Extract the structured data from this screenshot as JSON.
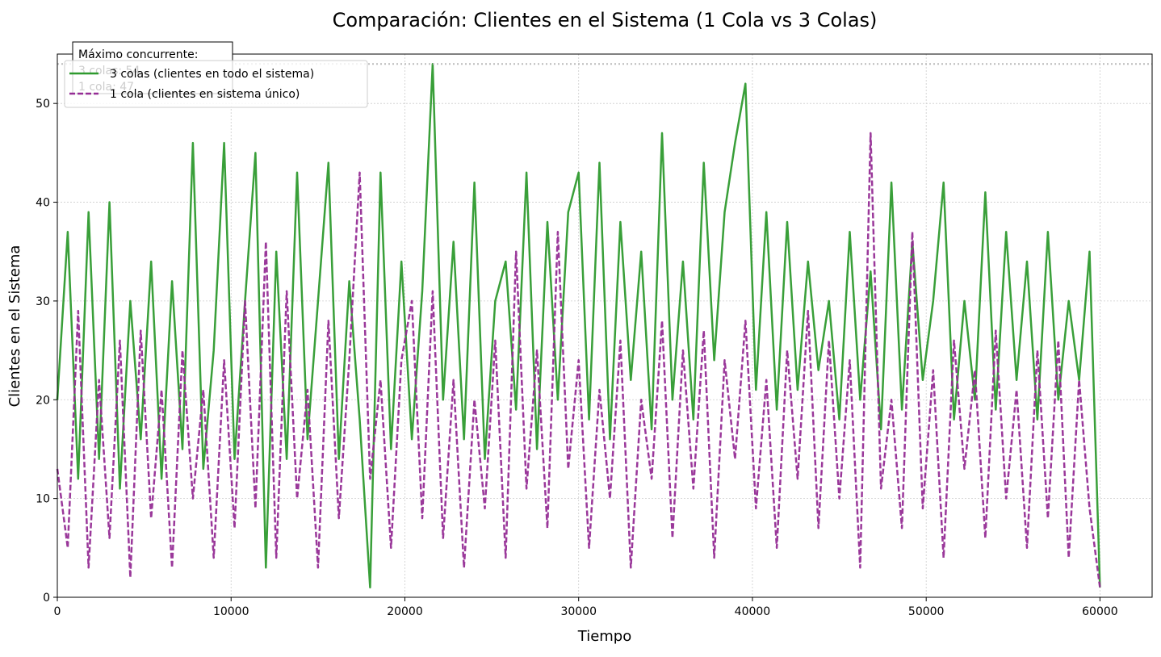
{
  "chart_data": {
    "type": "line",
    "title": "Comparación: Clientes en el Sistema (1 Cola vs 3 Colas)",
    "xlabel": "Tiempo",
    "ylabel": "Clientes en el Sistema",
    "x": [
      0,
      600,
      1200,
      1800,
      2400,
      3000,
      3600,
      4200,
      4800,
      5400,
      6000,
      6600,
      7200,
      7800,
      8400,
      9000,
      9600,
      10200,
      10800,
      11400,
      12000,
      12600,
      13200,
      13800,
      14400,
      15000,
      15600,
      16200,
      16800,
      17400,
      18000,
      18600,
      19200,
      19800,
      20400,
      21000,
      21600,
      22200,
      22800,
      23400,
      24000,
      24600,
      25200,
      25800,
      26400,
      27000,
      27600,
      28200,
      28800,
      29400,
      30000,
      30600,
      31200,
      31800,
      32400,
      33000,
      33600,
      34200,
      34800,
      35400,
      36000,
      36600,
      37200,
      37800,
      38400,
      39000,
      39600,
      40200,
      40800,
      41400,
      42000,
      42600,
      43200,
      43800,
      44400,
      45000,
      45600,
      46200,
      46800,
      47400,
      48000,
      48600,
      49200,
      49800,
      50400,
      51000,
      51600,
      52200,
      52800,
      53400,
      54000,
      54600,
      55200,
      55800,
      56400,
      57000,
      57600,
      58200,
      58800,
      59400,
      60000
    ],
    "series": [
      {
        "name": "3 colas (clientes en todo el sistema)",
        "color": "#2e9a2e",
        "dash": false,
        "values": [
          20,
          37,
          12,
          39,
          14,
          40,
          11,
          30,
          16,
          34,
          12,
          32,
          15,
          46,
          13,
          25,
          46,
          14,
          30,
          45,
          3,
          35,
          14,
          43,
          16,
          30,
          44,
          14,
          32,
          18,
          1,
          43,
          15,
          34,
          16,
          31,
          54,
          20,
          36,
          16,
          42,
          14,
          30,
          34,
          19,
          43,
          15,
          38,
          20,
          39,
          43,
          18,
          44,
          16,
          38,
          22,
          35,
          17,
          47,
          20,
          34,
          18,
          44,
          24,
          39,
          46,
          52,
          21,
          39,
          19,
          38,
          21,
          34,
          23,
          30,
          18,
          37,
          20,
          33,
          17,
          42,
          19,
          36,
          22,
          30,
          42,
          18,
          30,
          20,
          41,
          19,
          37,
          22,
          34,
          18,
          37,
          20,
          30,
          22,
          35,
          1
        ]
      },
      {
        "name": "1 cola (clientes en sistema único)",
        "color": "#952d95",
        "dash": true,
        "values": [
          13,
          5,
          29,
          3,
          22,
          6,
          26,
          2,
          27,
          8,
          21,
          3,
          25,
          10,
          21,
          4,
          24,
          7,
          30,
          9,
          36,
          4,
          31,
          10,
          21,
          3,
          28,
          8,
          24,
          43,
          12,
          22,
          5,
          24,
          30,
          8,
          31,
          6,
          22,
          3,
          20,
          9,
          26,
          4,
          35,
          11,
          25,
          7,
          37,
          13,
          24,
          5,
          21,
          10,
          26,
          3,
          20,
          12,
          28,
          6,
          25,
          11,
          27,
          4,
          24,
          14,
          28,
          9,
          22,
          5,
          25,
          12,
          29,
          7,
          26,
          10,
          24,
          3,
          47,
          11,
          20,
          7,
          37,
          9,
          23,
          4,
          26,
          13,
          23,
          6,
          27,
          10,
          21,
          5,
          25,
          8,
          26,
          4,
          22,
          9,
          1
        ]
      }
    ],
    "hline": 54,
    "annotation": [
      "Máximo concurrente:",
      "3 colas: 54",
      "1 cola: 47"
    ],
    "xlim": [
      0,
      63000
    ],
    "ylim": [
      0,
      55
    ],
    "xticks": [
      0,
      10000,
      20000,
      30000,
      40000,
      50000,
      60000
    ],
    "yticks": [
      0,
      10,
      20,
      30,
      40,
      50
    ],
    "grid": true,
    "legend": "upper left"
  }
}
